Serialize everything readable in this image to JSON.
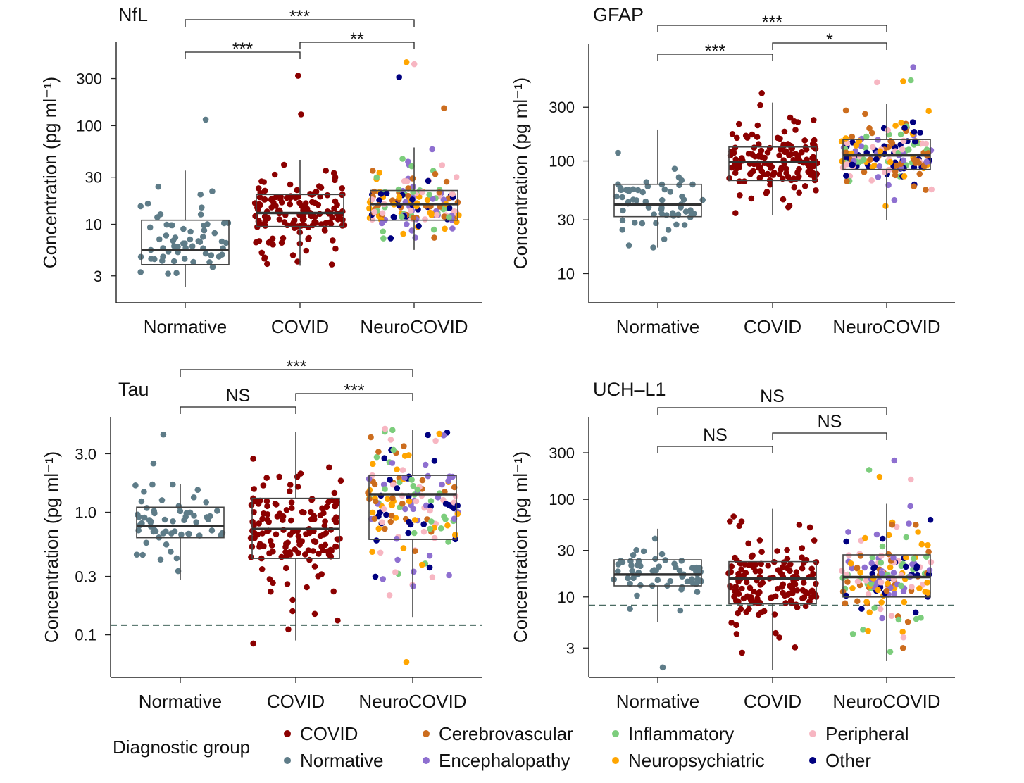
{
  "legend": {
    "title": "Diagnostic group",
    "entries": [
      {
        "label": "COVID",
        "color": "#8b0000"
      },
      {
        "label": "Normative",
        "color": "#5e7c88"
      },
      {
        "label": "Cerebrovascular",
        "color": "#cc6d1e"
      },
      {
        "label": "Encephalopathy",
        "color": "#8e6fd0"
      },
      {
        "label": "Inflammatory",
        "color": "#7ccd7c"
      },
      {
        "label": "Neuropsychiatric",
        "color": "#ffa500"
      },
      {
        "label": "Peripheral",
        "color": "#f7b6c2"
      },
      {
        "label": "Other",
        "color": "#000080"
      }
    ]
  },
  "chart_data": [
    {
      "type": "box",
      "title": "NfL",
      "ylabel": "Concentration (pg ml⁻¹)",
      "yscale": "log",
      "ylim": [
        1.6,
        700
      ],
      "yticks": [
        3,
        10,
        30,
        100,
        300
      ],
      "ytick_labels": [
        "3",
        "10",
        "30",
        "100",
        "300"
      ],
      "categories": [
        "Normative",
        "COVID",
        "NeuroCOVID"
      ],
      "boxes": [
        {
          "q1": 3.9,
          "median": 5.5,
          "q3": 11,
          "whisker_low": 2.3,
          "whisker_high": 35
        },
        {
          "q1": 9.5,
          "median": 13,
          "q3": 20,
          "whisker_low": 3.8,
          "whisker_high": 45
        },
        {
          "q1": 11,
          "median": 16,
          "q3": 22,
          "whisker_low": 5.5,
          "whisker_high": 60
        }
      ],
      "outliers": [
        {
          "group": "Normative",
          "value": 115
        },
        {
          "group": "COVID",
          "value": 320
        },
        {
          "group": "COVID",
          "value": 130
        },
        {
          "group": "NeuroCOVID",
          "value": 440
        },
        {
          "group": "NeuroCOVID",
          "value": 420
        },
        {
          "group": "NeuroCOVID",
          "value": 310
        },
        {
          "group": "NeuroCOVID",
          "value": 150
        }
      ],
      "comparisons": [
        {
          "from": "Normative",
          "to": "COVID",
          "label": "***"
        },
        {
          "from": "COVID",
          "to": "NeuroCOVID",
          "label": "**"
        },
        {
          "from": "Normative",
          "to": "NeuroCOVID",
          "label": "***"
        }
      ],
      "reference_line": null
    },
    {
      "type": "box",
      "title": "GFAP",
      "ylabel": "Concentration (pg ml⁻¹)",
      "yscale": "log",
      "ylim": [
        5.5,
        1100
      ],
      "yticks": [
        10,
        30,
        100,
        300
      ],
      "ytick_labels": [
        "10",
        "30",
        "100",
        "300"
      ],
      "categories": [
        "Normative",
        "COVID",
        "NeuroCOVID"
      ],
      "boxes": [
        {
          "q1": 32,
          "median": 41,
          "q3": 62,
          "whisker_low": 17,
          "whisker_high": 190
        },
        {
          "q1": 67,
          "median": 98,
          "q3": 133,
          "whisker_low": 33,
          "whisker_high": 330
        },
        {
          "q1": 84,
          "median": 112,
          "q3": 155,
          "whisker_low": 30,
          "whisker_high": 320
        }
      ],
      "outliers": [
        {
          "group": "COVID",
          "value": 400
        },
        {
          "group": "NeuroCOVID",
          "value": 680
        },
        {
          "group": "NeuroCOVID",
          "value": 520
        },
        {
          "group": "NeuroCOVID",
          "value": 510
        },
        {
          "group": "NeuroCOVID",
          "value": 500
        }
      ],
      "comparisons": [
        {
          "from": "Normative",
          "to": "COVID",
          "label": "***"
        },
        {
          "from": "COVID",
          "to": "NeuroCOVID",
          "label": "*"
        },
        {
          "from": "Normative",
          "to": "NeuroCOVID",
          "label": "***"
        }
      ],
      "reference_line": null
    },
    {
      "type": "box",
      "title": "Tau",
      "ylabel": "Concentration (pg ml⁻¹)",
      "yscale": "log",
      "ylim": [
        0.045,
        6
      ],
      "yticks": [
        0.1,
        0.3,
        1.0,
        3.0
      ],
      "ytick_labels": [
        "0.1",
        "0.3",
        "1.0",
        "3.0"
      ],
      "categories": [
        "Normative",
        "COVID",
        "NeuroCOVID"
      ],
      "boxes": [
        {
          "q1": 0.62,
          "median": 0.77,
          "q3": 1.1,
          "whisker_low": 0.28,
          "whisker_high": 1.7
        },
        {
          "q1": 0.42,
          "median": 0.73,
          "q3": 1.3,
          "whisker_low": 0.09,
          "whisker_high": 4.5
        },
        {
          "q1": 0.6,
          "median": 1.4,
          "q3": 2.0,
          "whisker_low": 0.14,
          "whisker_high": 4.7
        }
      ],
      "outliers": [
        {
          "group": "Normative",
          "value": 4.3
        },
        {
          "group": "Normative",
          "value": 2.5
        },
        {
          "group": "COVID",
          "value": 0.085
        },
        {
          "group": "NeuroCOVID",
          "value": 0.06
        },
        {
          "group": "NeuroCOVID",
          "value": 4.8
        }
      ],
      "comparisons": [
        {
          "from": "Normative",
          "to": "COVID",
          "label": "NS"
        },
        {
          "from": "COVID",
          "to": "NeuroCOVID",
          "label": "***"
        },
        {
          "from": "Normative",
          "to": "NeuroCOVID",
          "label": "***"
        }
      ],
      "reference_line": 0.12
    },
    {
      "type": "box",
      "title": "UCH–L1",
      "ylabel": "Concentration (pg ml⁻¹)",
      "yscale": "log",
      "ylim": [
        1.5,
        700
      ],
      "yticks": [
        3,
        10,
        30,
        100,
        300
      ],
      "ytick_labels": [
        "3",
        "10",
        "30",
        "100",
        "300"
      ],
      "categories": [
        "Normative",
        "COVID",
        "NeuroCOVID"
      ],
      "boxes": [
        {
          "q1": 13,
          "median": 17,
          "q3": 24,
          "whisker_low": 5.5,
          "whisker_high": 50
        },
        {
          "q1": 8.5,
          "median": 15.5,
          "q3": 23,
          "whisker_low": 1.8,
          "whisker_high": 80
        },
        {
          "q1": 10,
          "median": 16,
          "q3": 27,
          "whisker_low": 2.2,
          "whisker_high": 90
        }
      ],
      "outliers": [
        {
          "group": "Normative",
          "value": 1.9
        },
        {
          "group": "NeuroCOVID",
          "value": 250
        },
        {
          "group": "NeuroCOVID",
          "value": 200
        },
        {
          "group": "NeuroCOVID",
          "value": 170
        },
        {
          "group": "NeuroCOVID",
          "value": 160
        }
      ],
      "comparisons": [
        {
          "from": "Normative",
          "to": "COVID",
          "label": "NS"
        },
        {
          "from": "COVID",
          "to": "NeuroCOVID",
          "label": "NS"
        },
        {
          "from": "Normative",
          "to": "NeuroCOVID",
          "label": "NS"
        }
      ],
      "reference_line": 8.2
    }
  ]
}
